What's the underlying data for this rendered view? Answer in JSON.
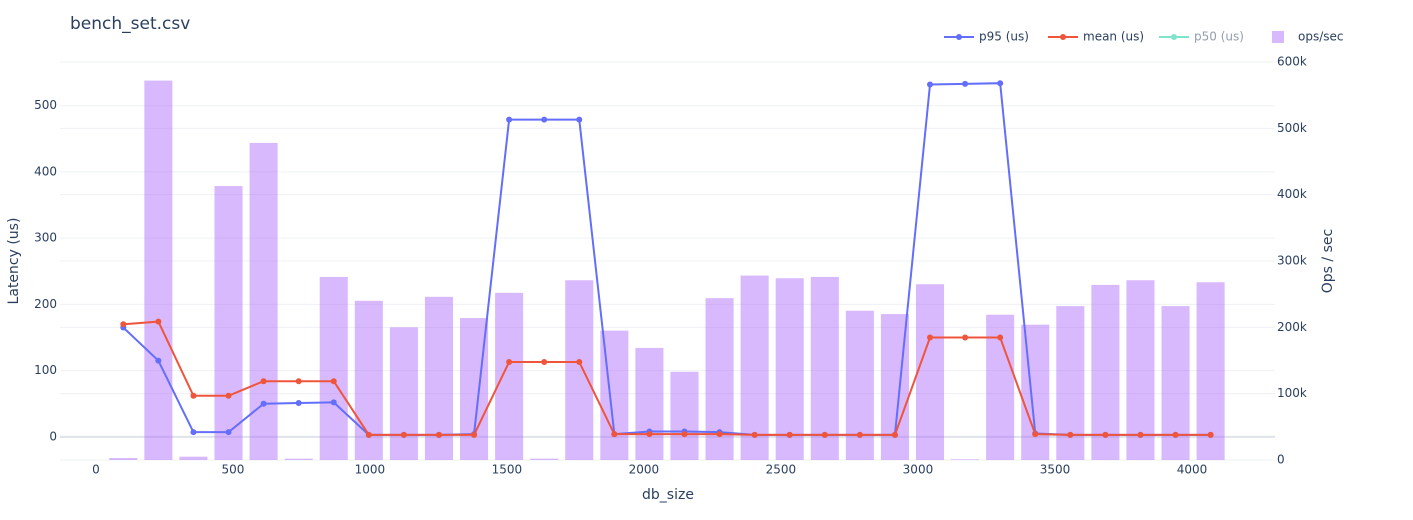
{
  "chart_data": {
    "type": "combo",
    "title": "bench_set.csv",
    "x_label": "db_size",
    "y_label": "Latency (us)",
    "y2_label": "Ops / sec",
    "x": [
      100,
      228,
      356,
      484,
      612,
      740,
      868,
      996,
      1124,
      1252,
      1380,
      1508,
      1636,
      1764,
      1892,
      2020,
      2148,
      2276,
      2404,
      2532,
      2660,
      2788,
      2916,
      3044,
      3172,
      3300,
      3428,
      3556,
      3684,
      3812,
      3940,
      4068
    ],
    "xlim": [
      -131,
      4303
    ],
    "xticks": [
      0,
      500,
      1000,
      1500,
      2000,
      2500,
      3000,
      3500,
      4000
    ],
    "ylim": [
      -35,
      566
    ],
    "yticks": [
      0,
      100,
      200,
      300,
      400,
      500
    ],
    "y2lim": [
      0,
      600000
    ],
    "y2ticks": [
      0,
      {
        "value": 100000,
        "label": "100k"
      },
      {
        "value": 200000,
        "label": "200k"
      },
      {
        "value": 300000,
        "label": "300k"
      },
      {
        "value": 400000,
        "label": "400k"
      },
      {
        "value": 500000,
        "label": "500k"
      },
      {
        "value": 600000,
        "label": "600k"
      }
    ],
    "grid": true,
    "legend": "top-right",
    "series": [
      {
        "name": "p95 (us)",
        "type": "line",
        "color": "#636efa",
        "visible": true,
        "values": [
          165,
          115,
          7,
          7,
          50,
          51,
          52,
          3,
          3,
          3,
          4,
          479,
          479,
          479,
          4,
          8,
          8,
          7,
          3,
          3,
          3,
          3,
          3,
          532,
          533,
          534,
          5,
          3,
          3,
          3,
          3,
          3
        ]
      },
      {
        "name": "mean (us)",
        "type": "line",
        "color": "#ef553b",
        "visible": true,
        "values": [
          170,
          174,
          62,
          62,
          84,
          84,
          84,
          3,
          3,
          3,
          3,
          113,
          113,
          113,
          4,
          4,
          4,
          4,
          3,
          3,
          3,
          3,
          3,
          150,
          150,
          150,
          4,
          3,
          3,
          3,
          3,
          3
        ]
      },
      {
        "name": "p50 (us)",
        "type": "line",
        "color": "#00cc96",
        "visible": false
      },
      {
        "name": "ops/sec",
        "type": "bar",
        "axis": "y2",
        "color": "#ab63fa",
        "visible": true,
        "values": [
          3000,
          572000,
          5000,
          413000,
          478000,
          2000,
          276000,
          240000,
          200000,
          246000,
          214000,
          252000,
          2000,
          271000,
          195000,
          169000,
          133000,
          244000,
          278000,
          274000,
          276000,
          225000,
          220000,
          265000,
          1000,
          219000,
          204000,
          232000,
          264000,
          271000,
          232000,
          268000
        ]
      }
    ]
  }
}
